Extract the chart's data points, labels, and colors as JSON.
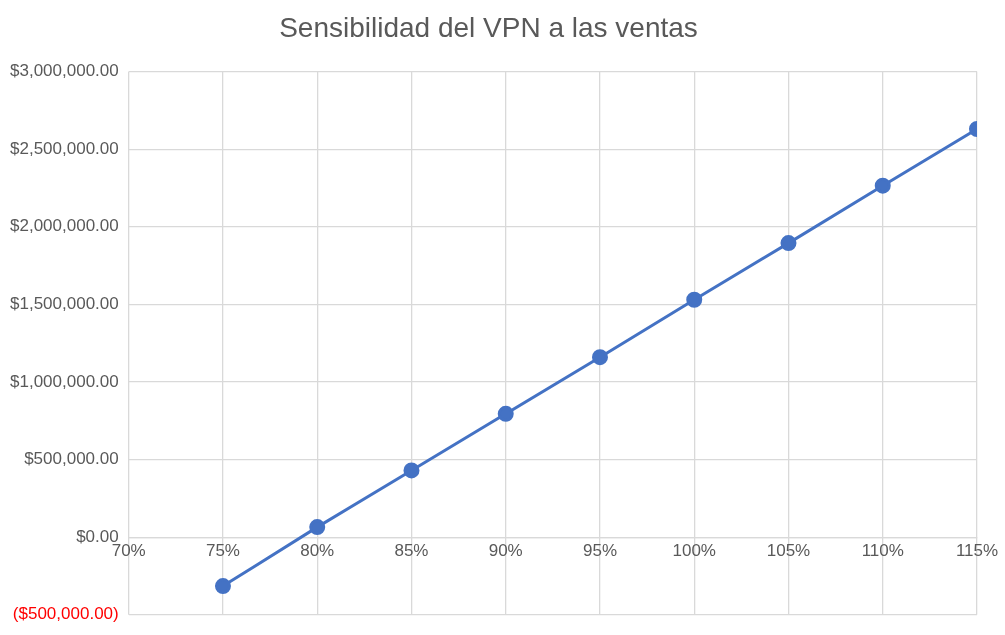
{
  "chart_data": {
    "type": "line",
    "title": "Sensibilidad del VPN a las ventas",
    "x": [
      75,
      80,
      85,
      90,
      95,
      100,
      105,
      110,
      115
    ],
    "series": [
      {
        "color": "#4472c4",
        "values": [
          -315000,
          65000,
          430000,
          795000,
          1160000,
          1530000,
          1895000,
          2265000,
          2630000
        ]
      }
    ],
    "xlim": [
      70,
      115
    ],
    "xticks": [
      {
        "value": 70,
        "label": "70%"
      },
      {
        "value": 75,
        "label": "75%"
      },
      {
        "value": 80,
        "label": "80%"
      },
      {
        "value": 85,
        "label": "85%"
      },
      {
        "value": 90,
        "label": "90%"
      },
      {
        "value": 95,
        "label": "95%"
      },
      {
        "value": 100,
        "label": "100%"
      },
      {
        "value": 105,
        "label": "105%"
      },
      {
        "value": 110,
        "label": "110%"
      },
      {
        "value": 115,
        "label": "115%"
      }
    ],
    "ylim": [
      -500000,
      3000000
    ],
    "yticks": [
      {
        "value": -500000,
        "label": "($500,000.00)"
      },
      {
        "value": 0,
        "label": "$0.00"
      },
      {
        "value": 500000,
        "label": "$500,000.00"
      },
      {
        "value": 1000000,
        "label": "$1,000,000.00"
      },
      {
        "value": 1500000,
        "label": "$1,500,000.00"
      },
      {
        "value": 2000000,
        "label": "$2,000,000.00"
      },
      {
        "value": 2500000,
        "label": "$2,500,000.00"
      },
      {
        "value": 3000000,
        "label": "$3,000,000.00"
      }
    ],
    "grid": true,
    "marker": "circle",
    "line_style": "solid",
    "legend": false
  }
}
